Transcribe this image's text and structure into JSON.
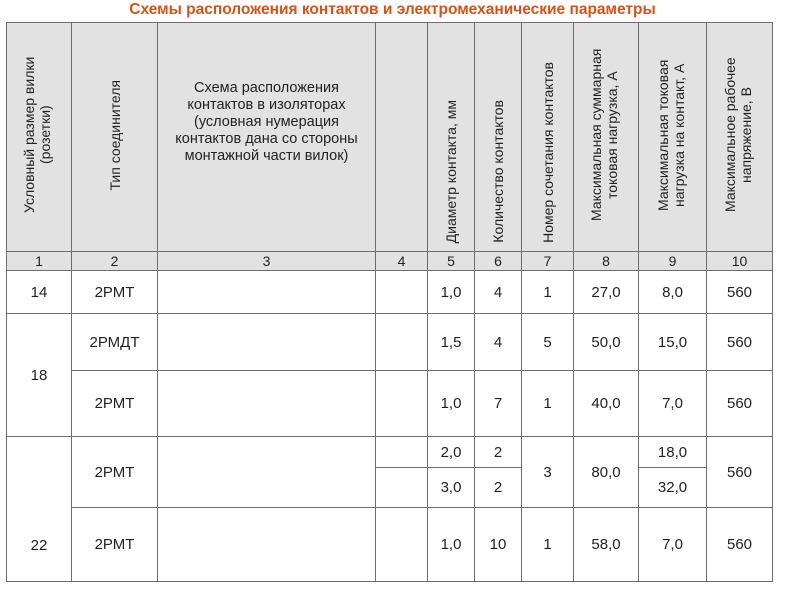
{
  "title": "Схемы расположения контактов и электромеханические параметры",
  "headers": {
    "c1": "Условный размер вилки (розетки)",
    "c2": "Тип соединителя",
    "c3": "Схема расположения контактов в изоляторах (условная нумерация контактов дана со стороны монтажной части вилок)",
    "c4": "",
    "c5": "Диаметр контакта, мм",
    "c6": "Количество контактов",
    "c7": "Номер сочетания контактов",
    "c8": "Максимальная суммарная токовая нагрузка, А",
    "c9": "Максимальная токовая нагрузка на контакт, А",
    "c10": "Максимальное рабочее напряжение, В"
  },
  "column_numbers": [
    "1",
    "2",
    "3",
    "4",
    "5",
    "6",
    "7",
    "8",
    "9",
    "10"
  ],
  "rows": {
    "r14": {
      "size": "14",
      "type": "2РМТ",
      "diameter": "1,0",
      "count": "4",
      "combo": "1",
      "total": "27,0",
      "per": "8,0",
      "voltage": "560"
    },
    "r18a": {
      "size": "18",
      "type": "2РМДТ",
      "diameter": "1,5",
      "count": "4",
      "combo": "5",
      "total": "50,0",
      "per": "15,0",
      "voltage": "560"
    },
    "r18b": {
      "type": "2РМТ",
      "diameter": "1,0",
      "count": "7",
      "combo": "1",
      "total": "40,0",
      "per": "7,0",
      "voltage": "560"
    },
    "r22a": {
      "size": "22",
      "type": "2РМТ",
      "diameter1": "2,0",
      "count1": "2",
      "per1": "18,0",
      "diameter2": "3,0",
      "count2": "2",
      "per2": "32,0",
      "combo": "3",
      "total": "80,0",
      "voltage": "560"
    },
    "r22b": {
      "type": "2РМТ",
      "diameter": "1,0",
      "count": "10",
      "combo": "1",
      "total": "58,0",
      "per": "7,0",
      "voltage": "560"
    }
  }
}
